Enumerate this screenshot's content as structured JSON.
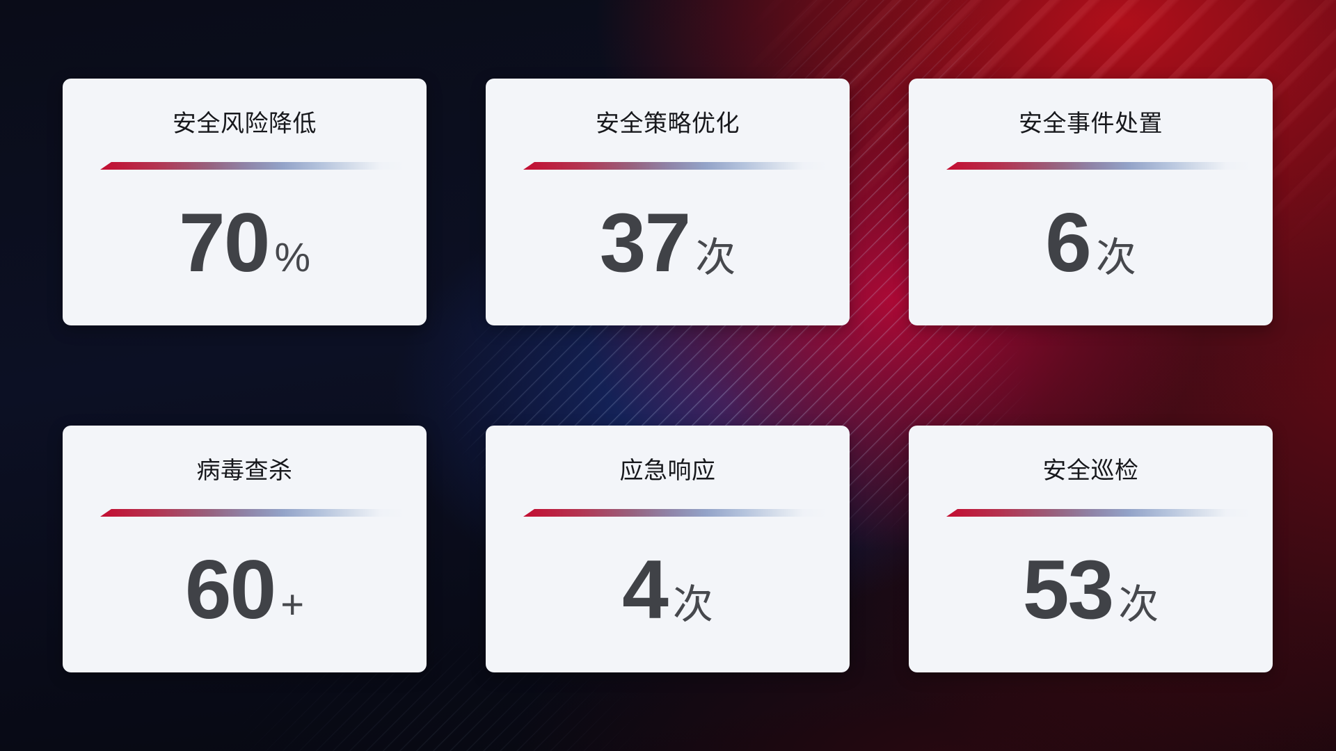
{
  "cards": [
    {
      "title": "安全风险降低",
      "value": "70",
      "unit": "%"
    },
    {
      "title": "安全策略优化",
      "value": "37",
      "unit": "次"
    },
    {
      "title": "安全事件处置",
      "value": "6",
      "unit": "次"
    },
    {
      "title": "病毒查杀",
      "value": "60",
      "unit": "+"
    },
    {
      "title": "应急响应",
      "value": "4",
      "unit": "次"
    },
    {
      "title": "安全巡检",
      "value": "53",
      "unit": "次"
    }
  ],
  "colors": {
    "card_background": "#f3f5f9",
    "title_text": "#17181c",
    "value_text": "#404247",
    "divider_red_start": "#c30d31",
    "divider_blue_mid": "#93a3c8",
    "divider_fade_end": "#eceff5",
    "background_navy": "#0b0e1c",
    "background_red_bright": "#a80d1a",
    "background_crimson_glow": "#b00836",
    "background_blue_glow": "#1c3488"
  }
}
